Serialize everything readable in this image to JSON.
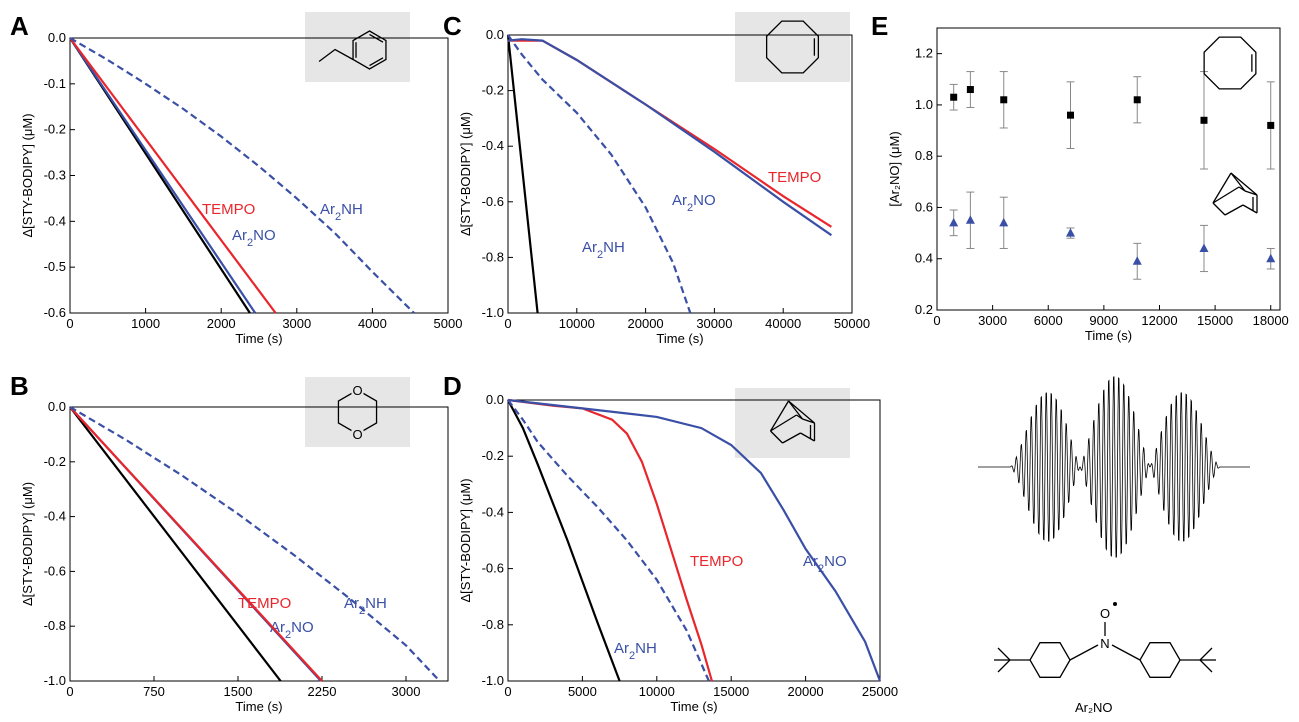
{
  "colors": {
    "black": "#000000",
    "red": "#e8262c",
    "blue": "#3a4fa6",
    "inset": "#e6e6e6"
  },
  "chart_data": [
    {
      "panel": "A",
      "type": "line",
      "inset_icon": "ethylbenzene-structure",
      "xlabel": "Time (s)",
      "ylabel": "Δ[STY-BODIPY] (μM)",
      "xlim": [
        0,
        5000
      ],
      "ylim": [
        -0.6,
        0.0
      ],
      "xticks": [
        "0",
        "1000",
        "2000",
        "3000",
        "4000",
        "5000"
      ],
      "yticks": [
        "0.0",
        "-0.1",
        "-0.2",
        "-0.3",
        "-0.4",
        "-0.5",
        "-0.6"
      ],
      "series": [
        {
          "color": "#000000",
          "dash": false,
          "x": [
            0,
            2380
          ],
          "y": [
            0,
            -0.6
          ]
        },
        {
          "name": "Ar2NO",
          "color": "#3a4fa6",
          "dash": false,
          "x": [
            0,
            2450
          ],
          "y": [
            0,
            -0.6
          ]
        },
        {
          "name": "TEMPO",
          "color": "#e8262c",
          "dash": false,
          "x": [
            0,
            2720
          ],
          "y": [
            0,
            -0.6
          ]
        },
        {
          "name": "Ar2NH",
          "color": "#3a4fa6",
          "dash": true,
          "x": [
            0,
            500,
            1000,
            1500,
            2000,
            2500,
            3000,
            3500,
            4000,
            4550
          ],
          "y": [
            0,
            -0.048,
            -0.1,
            -0.155,
            -0.215,
            -0.28,
            -0.35,
            -0.425,
            -0.51,
            -0.6
          ]
        }
      ]
    },
    {
      "panel": "B",
      "type": "line",
      "inset_icon": "dioxane-structure",
      "xlabel": "Time (s)",
      "ylabel": "Δ[STY-BODIPY] (μM)",
      "xlim": [
        0,
        3375
      ],
      "ylim": [
        -1.0,
        0.0
      ],
      "xticks": [
        "0",
        "750",
        "1500",
        "2250",
        "3000"
      ],
      "yticks": [
        "0.0",
        "-0.2",
        "-0.4",
        "-0.6",
        "-0.8",
        "-1.0"
      ],
      "series": [
        {
          "color": "#000000",
          "dash": false,
          "x": [
            0,
            1880
          ],
          "y": [
            0,
            -1.0
          ]
        },
        {
          "name": "Ar2NO",
          "color": "#3a4fa6",
          "dash": false,
          "x": [
            0,
            2240
          ],
          "y": [
            0,
            -1.0
          ]
        },
        {
          "name": "TEMPO",
          "color": "#e8262c",
          "dash": false,
          "x": [
            0,
            2250
          ],
          "y": [
            0,
            -1.0
          ]
        },
        {
          "name": "Ar2NH",
          "color": "#3a4fa6",
          "dash": true,
          "x": [
            0,
            500,
            1000,
            1500,
            2000,
            2500,
            3000,
            3300
          ],
          "y": [
            0,
            -0.12,
            -0.25,
            -0.39,
            -0.54,
            -0.7,
            -0.87,
            -1.0
          ]
        }
      ]
    },
    {
      "panel": "C",
      "type": "line",
      "inset_icon": "cyclooctene-structure",
      "xlabel": "Time (s)",
      "ylabel": "Δ[STY-BODIPY] (μM)",
      "xlim": [
        0,
        50000
      ],
      "ylim": [
        -1.0,
        0.0
      ],
      "xticks": [
        "0",
        "10000",
        "20000",
        "30000",
        "40000",
        "50000"
      ],
      "yticks": [
        "0.0",
        "-0.2",
        "-0.4",
        "-0.6",
        "-0.8",
        "-1.0"
      ],
      "series": [
        {
          "color": "#000000",
          "dash": false,
          "x": [
            0,
            4300
          ],
          "y": [
            0,
            -1.0
          ]
        },
        {
          "name": "Ar2NH",
          "color": "#3a4fa6",
          "dash": true,
          "x": [
            0,
            2000,
            5000,
            10000,
            15000,
            20000,
            24000,
            26500
          ],
          "y": [
            0,
            -0.07,
            -0.16,
            -0.28,
            -0.43,
            -0.62,
            -0.82,
            -1.0
          ]
        },
        {
          "name": "TEMPO",
          "color": "#e8262c",
          "dash": false,
          "x": [
            0,
            2000,
            5000,
            10000,
            20000,
            30000,
            40000,
            47000
          ],
          "y": [
            -0.02,
            -0.02,
            -0.02,
            -0.09,
            -0.25,
            -0.41,
            -0.58,
            -0.69
          ]
        },
        {
          "name": "Ar2NO",
          "color": "#3a4fa6",
          "dash": false,
          "x": [
            0,
            2000,
            5000,
            10000,
            20000,
            30000,
            40000,
            47000
          ],
          "y": [
            -0.02,
            -0.015,
            -0.02,
            -0.09,
            -0.25,
            -0.42,
            -0.6,
            -0.72
          ]
        }
      ]
    },
    {
      "panel": "D",
      "type": "line",
      "inset_icon": "norbornene-structure",
      "xlabel": "Time (s)",
      "ylabel": "Δ[STY-BODIPY] (μM)",
      "xlim": [
        0,
        25000
      ],
      "ylim": [
        -1.0,
        0.0
      ],
      "xticks": [
        "0",
        "5000",
        "10000",
        "15000",
        "20000",
        "25000"
      ],
      "yticks": [
        "0.0",
        "-0.2",
        "-0.4",
        "-0.6",
        "-0.8",
        "-1.0"
      ],
      "series": [
        {
          "color": "#000000",
          "dash": false,
          "x": [
            0,
            1000,
            2000,
            4000,
            6000,
            7500
          ],
          "y": [
            0,
            -0.1,
            -0.23,
            -0.5,
            -0.79,
            -1.0
          ]
        },
        {
          "name": "Ar2NH",
          "color": "#3a4fa6",
          "dash": true,
          "x": [
            0,
            1000,
            2000,
            4000,
            6000,
            8000,
            10000,
            12000,
            13500
          ],
          "y": [
            0,
            -0.07,
            -0.15,
            -0.27,
            -0.38,
            -0.5,
            -0.64,
            -0.82,
            -1.0
          ]
        },
        {
          "name": "TEMPO",
          "color": "#e8262c",
          "dash": false,
          "x": [
            0,
            3000,
            5000,
            7000,
            8000,
            9000,
            10000,
            11000,
            12000,
            13000,
            13700
          ],
          "y": [
            0,
            -0.02,
            -0.03,
            -0.07,
            -0.12,
            -0.22,
            -0.37,
            -0.54,
            -0.71,
            -0.87,
            -1.0
          ]
        },
        {
          "name": "Ar2NO",
          "color": "#3a4fa6",
          "dash": false,
          "x": [
            0,
            5000,
            10000,
            13000,
            15000,
            17000,
            18500,
            20000,
            22000,
            24000,
            25000
          ],
          "y": [
            0,
            -0.03,
            -0.06,
            -0.1,
            -0.16,
            -0.26,
            -0.39,
            -0.53,
            -0.68,
            -0.86,
            -1.0
          ]
        }
      ]
    },
    {
      "panel": "E",
      "type": "scatter",
      "inset_icons": [
        "cyclooctene-structure",
        "norbornene-structure"
      ],
      "xlabel": "Time (s)",
      "ylabel": "[Ar₂NO] (μM)",
      "xlim": [
        0,
        18500
      ],
      "ylim": [
        0.2,
        1.3
      ],
      "xticks": [
        "0",
        "3000",
        "6000",
        "9000",
        "12000",
        "15000",
        "18000"
      ],
      "yticks": [
        "0.2",
        "0.4",
        "0.6",
        "0.8",
        "1.0",
        "1.2"
      ],
      "series": [
        {
          "marker": "square",
          "color": "#000000",
          "x": [
            900,
            1800,
            3600,
            7200,
            10800,
            14400,
            18000
          ],
          "y": [
            1.03,
            1.06,
            1.02,
            0.96,
            1.02,
            0.94,
            0.92
          ],
          "err": [
            0.05,
            0.07,
            0.11,
            0.13,
            0.09,
            0.19,
            0.17
          ]
        },
        {
          "marker": "triangle",
          "color": "#3a4fa6",
          "x": [
            900,
            1800,
            3600,
            7200,
            10800,
            14400,
            18000
          ],
          "y": [
            0.54,
            0.55,
            0.54,
            0.5,
            0.39,
            0.44,
            0.4
          ],
          "err": [
            0.05,
            0.11,
            0.1,
            0.02,
            0.07,
            0.09,
            0.04
          ]
        }
      ]
    }
  ],
  "esr": {
    "compound_label": "Ar₂NO"
  }
}
